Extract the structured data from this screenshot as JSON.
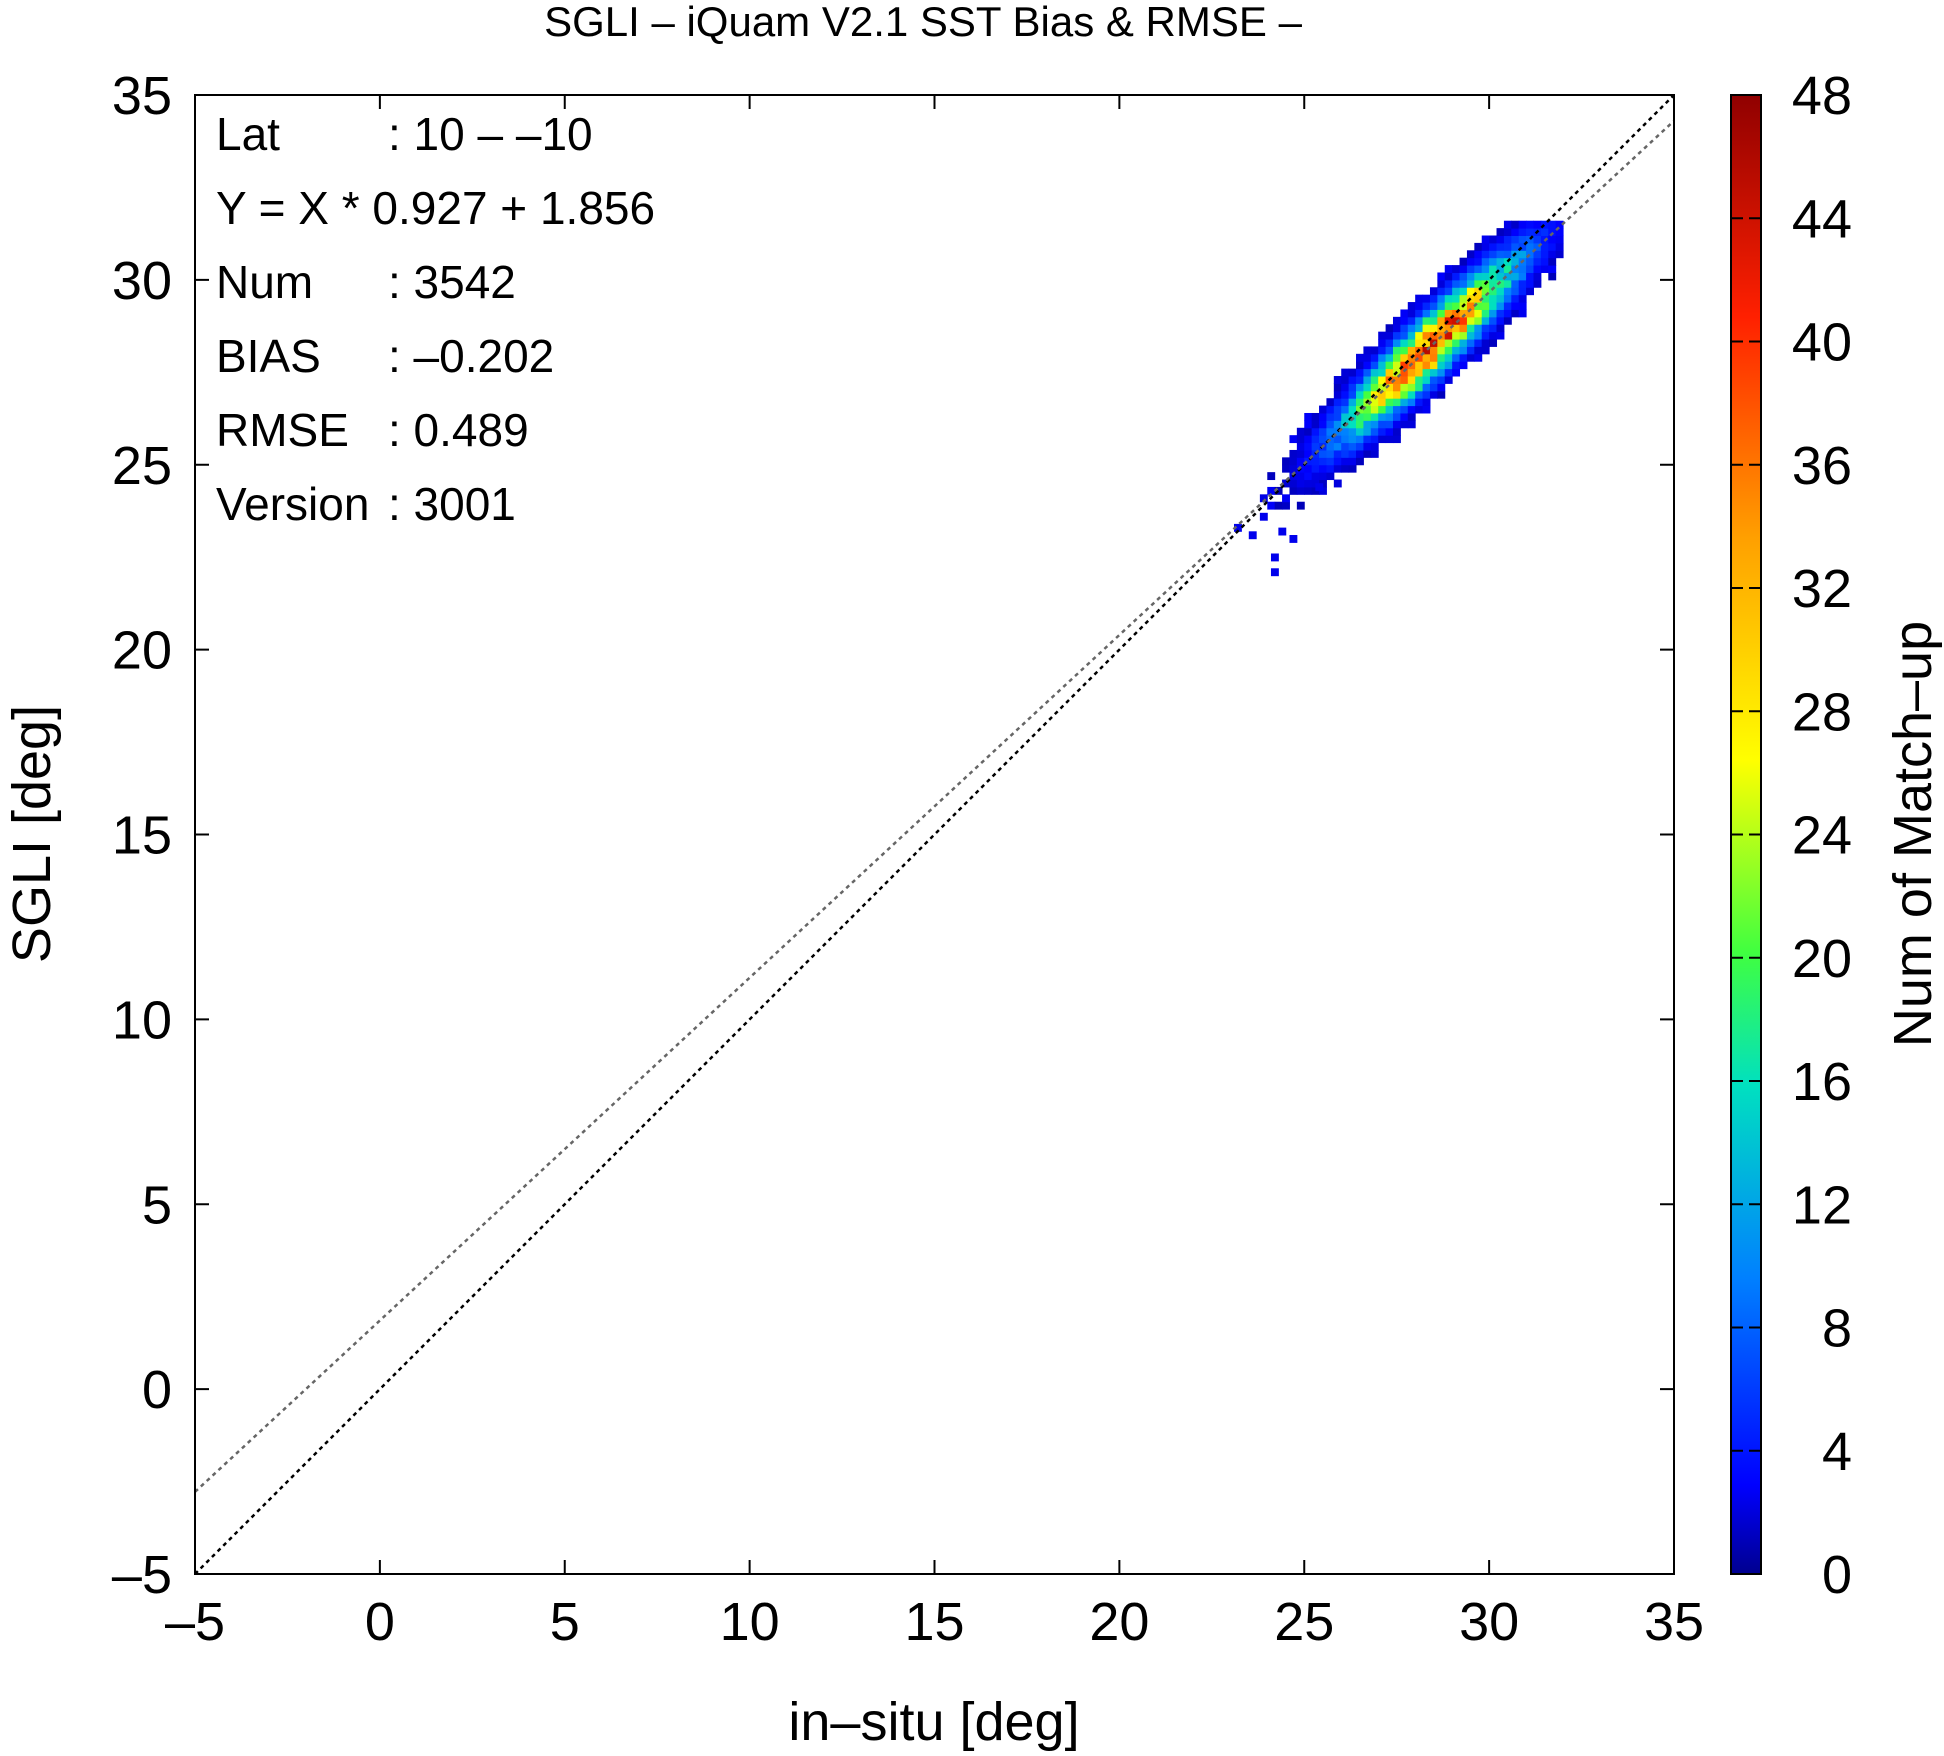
{
  "chart_data": {
    "type": "heatmap",
    "title": "SGLI – iQuam V2.1 SST Bias & RMSE  –",
    "xlabel": "in–situ [deg]",
    "ylabel": "SGLI [deg]",
    "xlim": [
      -5,
      35
    ],
    "ylim": [
      -5,
      35
    ],
    "xticks": [
      "–5",
      "0",
      "5",
      "10",
      "15",
      "20",
      "25",
      "30",
      "35"
    ],
    "yticks": [
      "–5",
      "0",
      "5",
      "10",
      "15",
      "20",
      "25",
      "30",
      "35"
    ],
    "grid": false,
    "colorbar": {
      "label": "Num of Match–up",
      "range": [
        0,
        48
      ],
      "ticks": [
        "0",
        "4",
        "8",
        "12",
        "16",
        "20",
        "24",
        "28",
        "32",
        "36",
        "40",
        "44",
        "48"
      ],
      "colormap": [
        "#00008f",
        "#0000ff",
        "#0080ff",
        "#00ffff",
        "#80ff80",
        "#ffff00",
        "#ff8000",
        "#ff0000",
        "#800000"
      ]
    },
    "stats": {
      "rows": [
        {
          "key": "Lat",
          "value": ": 10 – –10"
        },
        {
          "key": "Y = X * 0.927 + 1.856",
          "value": ""
        },
        {
          "key": "Num",
          "value": ": 3542"
        },
        {
          "key": "BIAS",
          "value": ": –0.202"
        },
        {
          "key": "RMSE",
          "value": ": 0.489"
        },
        {
          "key": "Version",
          "value": ": 3001"
        }
      ]
    },
    "lines": [
      {
        "kind": "identity",
        "slope": 1,
        "intercept": 0,
        "color": "#000000",
        "dash": "dotted"
      },
      {
        "kind": "regression",
        "slope": 0.927,
        "intercept": 1.856,
        "color": "#666666",
        "dash": "dotted"
      }
    ],
    "density": {
      "center": [
        28.3,
        28.1
      ],
      "peak_count": 40,
      "x_range": [
        23,
        31.8
      ],
      "y_range": [
        22.0,
        31.5
      ]
    }
  }
}
